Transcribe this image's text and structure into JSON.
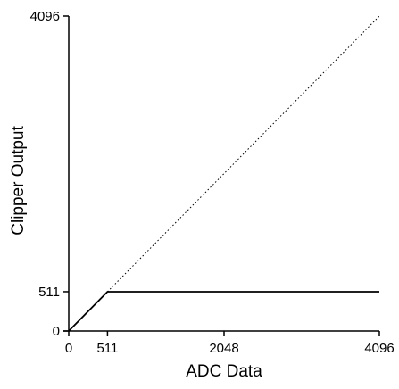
{
  "chart_data": {
    "type": "line",
    "title": "",
    "xlabel": "ADC Data",
    "ylabel": "Clipper Output",
    "xlim": [
      0,
      4096
    ],
    "ylim": [
      0,
      4096
    ],
    "x_ticks": [
      {
        "value": 0,
        "label": "0"
      },
      {
        "value": 511,
        "label": "511"
      },
      {
        "value": 2048,
        "label": "2048"
      },
      {
        "value": 4096,
        "label": "4096"
      }
    ],
    "y_ticks": [
      {
        "value": 0,
        "label": "0"
      },
      {
        "value": 511,
        "label": "511"
      },
      {
        "value": 4096,
        "label": "4096"
      }
    ],
    "grid": false,
    "legend": "none",
    "series": [
      {
        "style": "solid",
        "color": "#000000",
        "points": [
          [
            0,
            0
          ],
          [
            511,
            511
          ],
          [
            4096,
            511
          ]
        ]
      },
      {
        "style": "dotted",
        "color": "#000000",
        "points": [
          [
            511,
            511
          ],
          [
            4096,
            4096
          ]
        ]
      }
    ]
  }
}
